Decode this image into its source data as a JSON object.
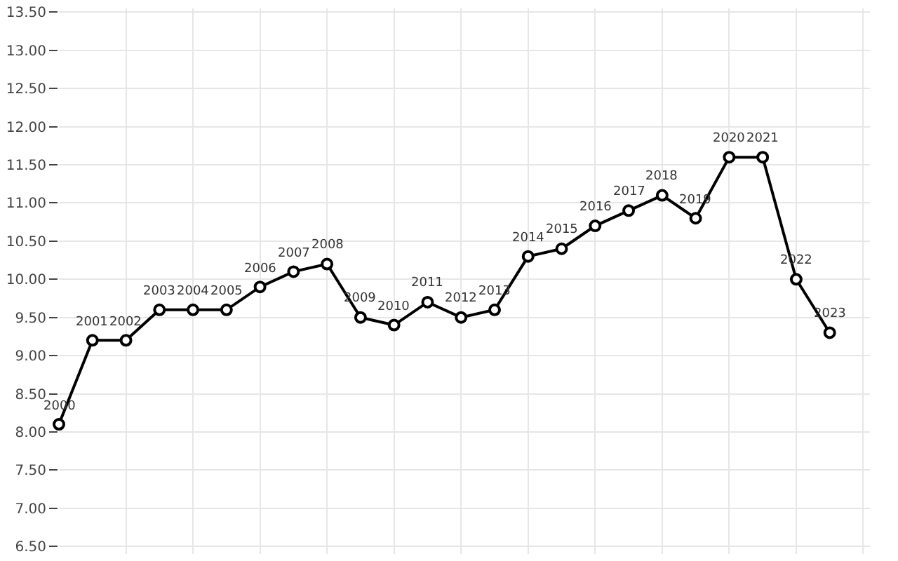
{
  "chart_data": {
    "type": "line",
    "categories": [
      null,
      null,
      null,
      null,
      null,
      null,
      null,
      null,
      null,
      null,
      null,
      null,
      null,
      null,
      null,
      null,
      null,
      null,
      null,
      null,
      null,
      null,
      null,
      null
    ],
    "series": [
      {
        "color": "#000000",
        "values": [
          8.1,
          9.2,
          9.2,
          9.6,
          9.6,
          9.6,
          9.9,
          10.1,
          10.2,
          9.5,
          9.4,
          9.7,
          9.5,
          9.6,
          10.3,
          10.4,
          10.7,
          10.9,
          11.1,
          10.8,
          11.6,
          11.6,
          10.0,
          9.3
        ]
      }
    ],
    "annotations": [
      {
        "text": "2000",
        "y": 8.1
      },
      {
        "text": "2001",
        "y": 9.2
      },
      {
        "text": "2002",
        "y": 9.2
      },
      {
        "text": "2003",
        "y": 9.6
      },
      {
        "text": "2004",
        "y": 9.6
      },
      {
        "text": "2005",
        "y": 9.6
      },
      {
        "text": "2006",
        "y": 9.9
      },
      {
        "text": "2007",
        "y": 10.1
      },
      {
        "text": "2008",
        "y": 10.2
      },
      {
        "text": "2009",
        "y": 9.5
      },
      {
        "text": "2010",
        "y": 9.4
      },
      {
        "text": "2011",
        "y": 9.7
      },
      {
        "text": "2012",
        "y": 9.5
      },
      {
        "text": "2013",
        "y": 9.6
      },
      {
        "text": "2014",
        "y": 10.3
      },
      {
        "text": "2015",
        "y": 10.4
      },
      {
        "text": "2016",
        "y": 10.7
      },
      {
        "text": "2017",
        "y": 10.9
      },
      {
        "text": "2018",
        "y": 11.1
      },
      {
        "text": "2019",
        "y": 10.8
      },
      {
        "text": "2020",
        "y": 11.6
      },
      {
        "text": "2021",
        "y": 11.6
      },
      {
        "text": "2022",
        "y": 10.0
      },
      {
        "text": "2023",
        "y": 9.3
      }
    ],
    "ylim": [
      6.4,
      13.55
    ],
    "yticks": [
      {
        "value": 6.5,
        "label": "6.50"
      },
      {
        "value": 7,
        "label": "7.00"
      },
      {
        "value": 7.5,
        "label": "7.50"
      },
      {
        "value": 8,
        "label": "8.00"
      },
      {
        "value": 8.5,
        "label": "8.50"
      },
      {
        "value": 9,
        "label": "9.00"
      },
      {
        "value": 9.5,
        "label": "9.50"
      },
      {
        "value": 10,
        "label": "10.00"
      },
      {
        "value": 10.5,
        "label": "10.50"
      },
      {
        "value": 11,
        "label": "11.00"
      },
      {
        "value": 11.5,
        "label": "11.50"
      },
      {
        "value": 12,
        "label": "12.00"
      },
      {
        "value": 12.5,
        "label": "12.50"
      },
      {
        "value": 13,
        "label": "13.00"
      },
      {
        "value": 13.5,
        "label": "13.50"
      }
    ],
    "tick_labels": "y",
    "grid": true,
    "marker": "circle",
    "line_style": "solid"
  }
}
